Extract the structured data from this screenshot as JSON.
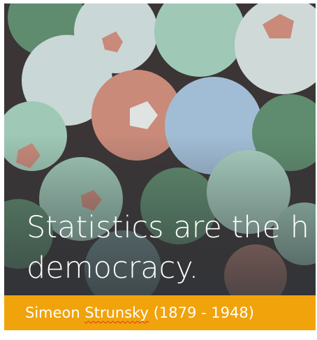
{
  "quote": {
    "line1": "Statistics are the h",
    "line2": "democracy."
  },
  "attribution": {
    "first_name": "Simeon",
    "last_name": "Strunsky",
    "years": "(1879 - 1948)"
  }
}
